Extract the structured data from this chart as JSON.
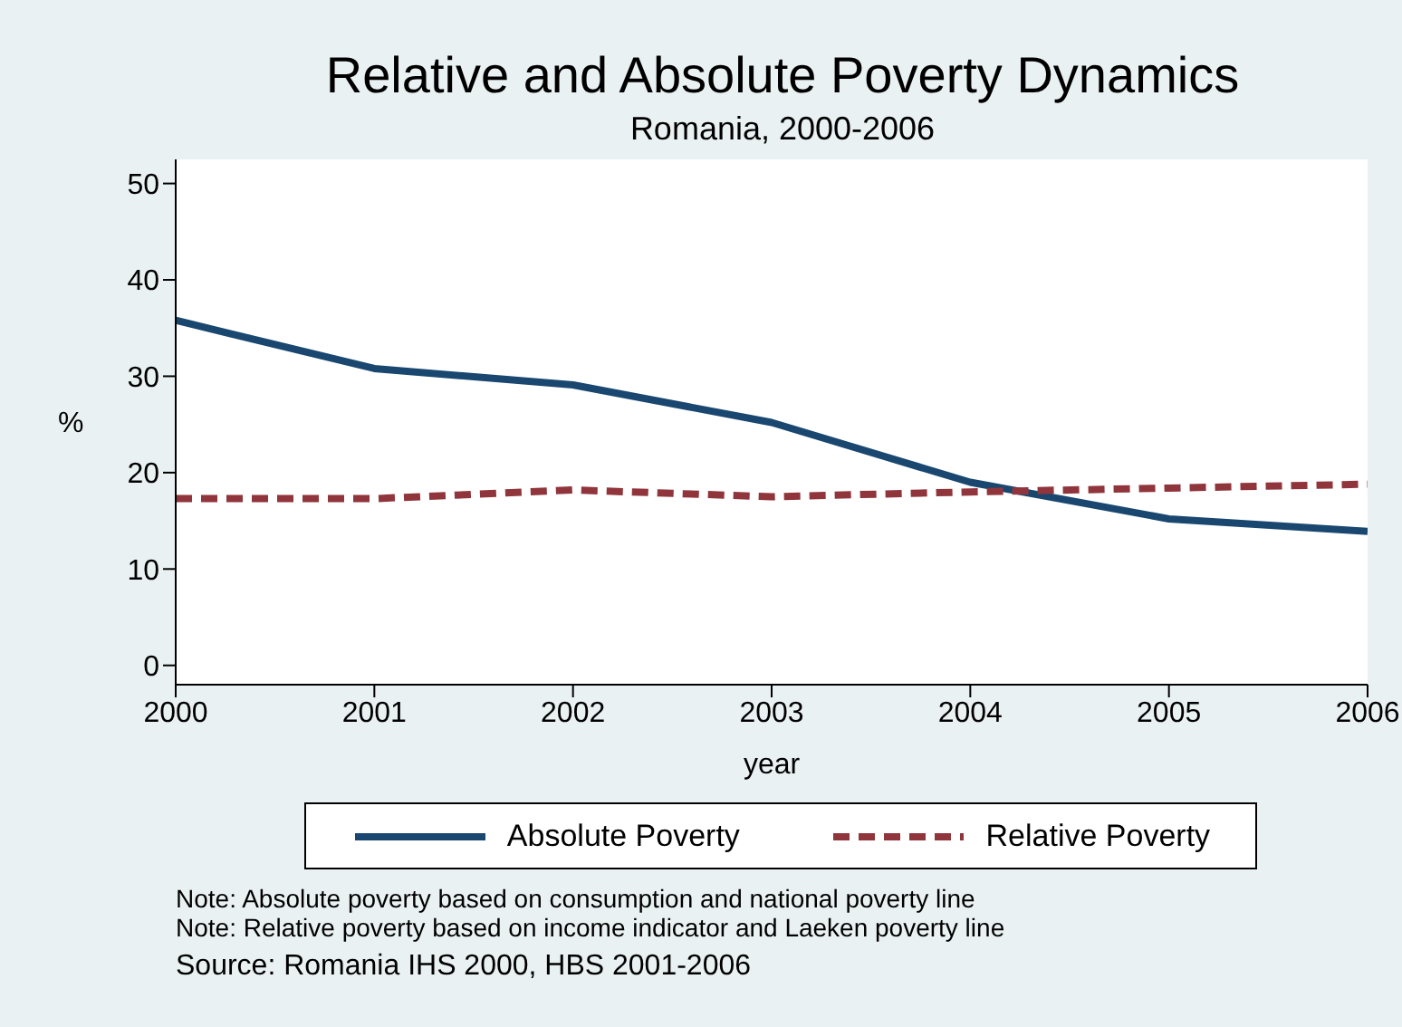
{
  "chart_data": {
    "type": "line",
    "title": "Relative and Absolute Poverty Dynamics",
    "subtitle": "Romania, 2000-2006",
    "xlabel": "year",
    "ylabel": "%",
    "x": [
      2000,
      2001,
      2002,
      2003,
      2004,
      2005,
      2006
    ],
    "series": [
      {
        "name": "Absolute Poverty",
        "color": "#1a476f",
        "values": [
          35.8,
          30.8,
          29.1,
          25.2,
          19,
          15.2,
          13.9
        ],
        "line_style": "solid"
      },
      {
        "name": "Relative Poverty",
        "color": "#90353b",
        "values": [
          17.3,
          17.3,
          18.2,
          17.5,
          18,
          18.4,
          18.8
        ],
        "line_style": "dashed"
      }
    ],
    "xlim": [
      2000,
      2006
    ],
    "xticks": [
      2000,
      2001,
      2002,
      2003,
      2004,
      2005,
      2006
    ],
    "ylim": [
      -2,
      52.5
    ],
    "yticks": [
      0,
      10,
      20,
      30,
      40,
      50
    ],
    "grid": false,
    "legend": "bottom",
    "marker": "none",
    "annotations": [
      "Note: Absolute poverty based on consumption and national poverty line",
      "Note: Relative poverty based on income indicator and Laeken poverty line",
      "Source: Romania IHS 2000, HBS 2001-2006"
    ]
  }
}
